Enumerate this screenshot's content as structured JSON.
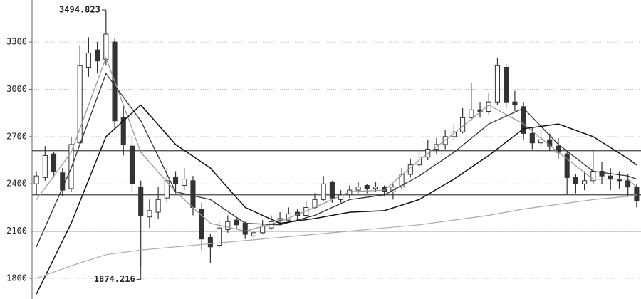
{
  "chart_data": {
    "type": "candlestick",
    "xlim": [
      -0.5,
      69.5
    ],
    "ylim": [
      1669,
      3567
    ],
    "yticks": [
      1800,
      2100,
      2400,
      2700,
      3000,
      3300
    ],
    "grid": true,
    "up_color": "#ffffff",
    "down_color": "#333333",
    "edge_color": "#333333",
    "ohlc": [
      [
        2400,
        2480,
        2330,
        2450
      ],
      [
        2440,
        2640,
        2420,
        2580
      ],
      [
        2590,
        2600,
        2440,
        2480
      ],
      [
        2470,
        2500,
        2320,
        2360
      ],
      [
        2370,
        2700,
        2350,
        2650
      ],
      [
        2660,
        3280,
        2640,
        3150
      ],
      [
        3140,
        3330,
        3080,
        3230
      ],
      [
        3250,
        3300,
        3100,
        3180
      ],
      [
        3190,
        3494.823,
        3150,
        3350
      ],
      [
        3300,
        3320,
        2760,
        2800
      ],
      [
        2820,
        2900,
        2580,
        2650
      ],
      [
        2640,
        2700,
        2350,
        2400
      ],
      [
        2380,
        2420,
        1874.216,
        2200
      ],
      [
        2190,
        2300,
        2120,
        2230
      ],
      [
        2220,
        2380,
        2180,
        2300
      ],
      [
        2310,
        2500,
        2280,
        2420
      ],
      [
        2440,
        2480,
        2340,
        2400
      ],
      [
        2390,
        2500,
        2360,
        2430
      ],
      [
        2420,
        2450,
        2200,
        2250
      ],
      [
        2240,
        2280,
        1980,
        2050
      ],
      [
        2060,
        2080,
        1900,
        2000
      ],
      [
        2010,
        2160,
        1990,
        2120
      ],
      [
        2110,
        2200,
        2090,
        2160
      ],
      [
        2170,
        2190,
        2110,
        2140
      ],
      [
        2150,
        2160,
        2050,
        2080
      ],
      [
        2070,
        2120,
        2050,
        2090
      ],
      [
        2090,
        2170,
        2080,
        2130
      ],
      [
        2120,
        2200,
        2110,
        2160
      ],
      [
        2170,
        2220,
        2140,
        2180
      ],
      [
        2170,
        2250,
        2160,
        2210
      ],
      [
        2220,
        2240,
        2170,
        2200
      ],
      [
        2200,
        2290,
        2190,
        2250
      ],
      [
        2250,
        2340,
        2240,
        2300
      ],
      [
        2300,
        2450,
        2290,
        2400
      ],
      [
        2410,
        2420,
        2280,
        2310
      ],
      [
        2300,
        2360,
        2280,
        2330
      ],
      [
        2330,
        2390,
        2310,
        2360
      ],
      [
        2360,
        2410,
        2340,
        2380
      ],
      [
        2390,
        2400,
        2340,
        2370
      ],
      [
        2370,
        2410,
        2350,
        2380
      ],
      [
        2380,
        2390,
        2320,
        2350
      ],
      [
        2350,
        2400,
        2300,
        2380
      ],
      [
        2380,
        2500,
        2370,
        2460
      ],
      [
        2460,
        2560,
        2440,
        2520
      ],
      [
        2520,
        2610,
        2500,
        2570
      ],
      [
        2570,
        2680,
        2550,
        2620
      ],
      [
        2620,
        2690,
        2590,
        2650
      ],
      [
        2650,
        2740,
        2620,
        2700
      ],
      [
        2700,
        2780,
        2680,
        2730
      ],
      [
        2730,
        2880,
        2720,
        2820
      ],
      [
        2820,
        3040,
        2800,
        2870
      ],
      [
        2870,
        2920,
        2820,
        2860
      ],
      [
        2860,
        2980,
        2840,
        2920
      ],
      [
        2920,
        3200,
        2900,
        3150
      ],
      [
        3140,
        3160,
        2880,
        2920
      ],
      [
        2920,
        2990,
        2860,
        2900
      ],
      [
        2890,
        2920,
        2680,
        2720
      ],
      [
        2720,
        2760,
        2620,
        2660
      ],
      [
        2660,
        2740,
        2640,
        2680
      ],
      [
        2680,
        2720,
        2610,
        2640
      ],
      [
        2640,
        2690,
        2560,
        2600
      ],
      [
        2590,
        2610,
        2330,
        2440
      ],
      [
        2440,
        2460,
        2340,
        2400
      ],
      [
        2400,
        2480,
        2360,
        2420
      ],
      [
        2420,
        2620,
        2400,
        2480
      ],
      [
        2480,
        2540,
        2400,
        2450
      ],
      [
        2450,
        2500,
        2360,
        2430
      ],
      [
        2430,
        2480,
        2370,
        2420
      ],
      [
        2420,
        2460,
        2320,
        2380
      ],
      [
        2380,
        2400,
        2250,
        2290
      ]
    ],
    "lines": [
      {
        "color": "#999999",
        "width": 1.3,
        "x": [
          0,
          4,
          8,
          12,
          16,
          20,
          24,
          28,
          32,
          36,
          40,
          44,
          48,
          52,
          56,
          60,
          64,
          68,
          69
        ],
        "values": [
          2300,
          2600,
          3200,
          2600,
          2350,
          2150,
          2100,
          2160,
          2250,
          2350,
          2360,
          2550,
          2720,
          2900,
          2780,
          2600,
          2430,
          2430,
          2380
        ]
      },
      {
        "color": "#333333",
        "width": 1.3,
        "x": [
          0,
          4,
          8,
          12,
          16,
          20,
          24,
          28,
          32,
          36,
          40,
          44,
          48,
          52,
          56,
          60,
          64,
          68,
          69
        ],
        "values": [
          2000,
          2500,
          3100,
          2800,
          2350,
          2300,
          2150,
          2140,
          2200,
          2300,
          2330,
          2450,
          2600,
          2780,
          2880,
          2650,
          2480,
          2450,
          2430
        ]
      },
      {
        "color": "#111111",
        "width": 1.5,
        "x": [
          0,
          4,
          8,
          12,
          16,
          20,
          24,
          28,
          32,
          36,
          40,
          44,
          48,
          52,
          56,
          60,
          64,
          68,
          69
        ],
        "values": [
          1700,
          2150,
          2700,
          2900,
          2650,
          2500,
          2250,
          2150,
          2180,
          2220,
          2230,
          2300,
          2430,
          2580,
          2750,
          2780,
          2700,
          2560,
          2520
        ]
      },
      {
        "color": "#aaaaaa",
        "width": 1.2,
        "x": [
          0,
          4,
          8,
          12,
          16,
          20,
          24,
          28,
          32,
          36,
          40,
          44,
          48,
          52,
          56,
          60,
          64,
          68,
          69
        ],
        "values": [
          1800,
          1880,
          1950,
          1980,
          2000,
          2020,
          2040,
          2060,
          2080,
          2100,
          2120,
          2140,
          2170,
          2200,
          2240,
          2270,
          2300,
          2320,
          2330
        ]
      }
    ],
    "hlines": [
      2610,
      2330,
      2100
    ],
    "annotations": [
      {
        "label": "3494.823",
        "x": 8,
        "value": 3494.823,
        "side": "top"
      },
      {
        "label": "1874.216",
        "x": 12,
        "value": 1874.216,
        "side": "bottom"
      }
    ]
  }
}
